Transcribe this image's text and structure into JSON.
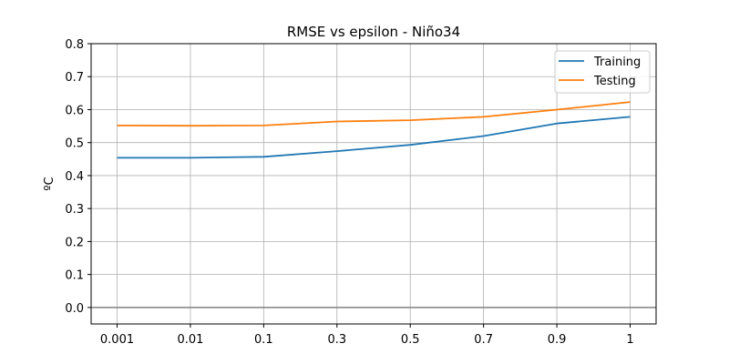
{
  "chart_data": {
    "type": "line",
    "title": "RMSE vs epsilon - Niño34",
    "xlabel": "",
    "ylabel": "ºC",
    "categories": [
      "0.001",
      "0.01",
      "0.1",
      "0.3",
      "0.5",
      "0.7",
      "0.9",
      "1"
    ],
    "series": [
      {
        "name": "Training",
        "color": "#1f77b4",
        "values": [
          0.454,
          0.454,
          0.457,
          0.474,
          0.493,
          0.52,
          0.558,
          0.578
        ]
      },
      {
        "name": "Testing",
        "color": "#ff7f0e",
        "values": [
          0.552,
          0.551,
          0.552,
          0.564,
          0.568,
          0.578,
          0.6,
          0.623
        ]
      }
    ],
    "ylim": [
      -0.05,
      0.8
    ],
    "yticks": [
      0.0,
      0.1,
      0.2,
      0.3,
      0.4,
      0.5,
      0.6,
      0.7,
      0.8
    ],
    "ytick_labels": [
      "0.0",
      "0.1",
      "0.2",
      "0.3",
      "0.4",
      "0.5",
      "0.6",
      "0.7",
      "0.8"
    ],
    "reference_line": {
      "y": 0.0,
      "color": "#808080"
    },
    "grid": true,
    "legend_position": "top-right"
  }
}
